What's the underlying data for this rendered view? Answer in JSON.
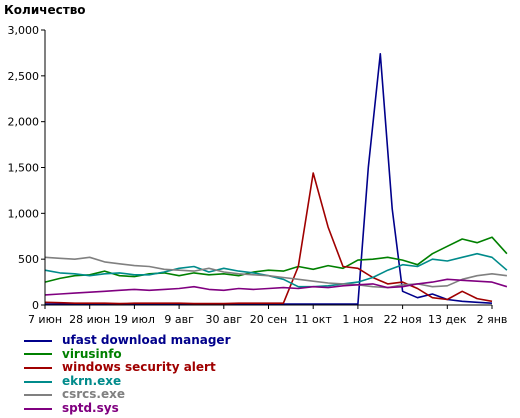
{
  "chart_data": {
    "type": "line",
    "title": "Количество",
    "xlabel": "",
    "ylabel": "",
    "ylim": [
      0,
      3000
    ],
    "yticks": [
      0,
      500,
      1000,
      1500,
      2000,
      2500,
      3000
    ],
    "ytick_labels": [
      "0",
      "500",
      "1,000",
      "1,500",
      "2,000",
      "2,500",
      "3,000"
    ],
    "xlim": [
      0,
      30
    ],
    "xtick_positions": [
      0,
      3,
      6,
      9,
      12,
      15,
      18,
      21,
      24,
      27,
      30
    ],
    "xtick_labels": [
      "7 июн",
      "28 июн",
      "19 июл",
      "9 авг",
      "30 авг",
      "20 сен",
      "11 окт",
      "1 ноя",
      "22 ноя",
      "13 дек",
      "2 янв"
    ],
    "grid": false,
    "legend_position": "bottom-left",
    "series": [
      {
        "name": "ufast download manager",
        "color": "#00008b",
        "points": [
          [
            0,
            10
          ],
          [
            1,
            10
          ],
          [
            2,
            10
          ],
          [
            3,
            10
          ],
          [
            4,
            10
          ],
          [
            5,
            10
          ],
          [
            6,
            10
          ],
          [
            7,
            10
          ],
          [
            8,
            10
          ],
          [
            9,
            10
          ],
          [
            10,
            10
          ],
          [
            11,
            10
          ],
          [
            12,
            10
          ],
          [
            13,
            10
          ],
          [
            14,
            10
          ],
          [
            15,
            10
          ],
          [
            16,
            10
          ],
          [
            17,
            10
          ],
          [
            18,
            10
          ],
          [
            19,
            10
          ],
          [
            20,
            10
          ],
          [
            21,
            10
          ],
          [
            21.7,
            1500
          ],
          [
            22.5,
            2740
          ],
          [
            23.3,
            1050
          ],
          [
            24,
            150
          ],
          [
            25,
            80
          ],
          [
            26,
            120
          ],
          [
            27,
            60
          ],
          [
            28,
            40
          ],
          [
            29,
            30
          ],
          [
            30,
            20
          ]
        ]
      },
      {
        "name": "virusinfo",
        "color": "#008000",
        "points": [
          [
            0,
            250
          ],
          [
            1,
            290
          ],
          [
            2,
            320
          ],
          [
            3,
            330
          ],
          [
            4,
            370
          ],
          [
            5,
            320
          ],
          [
            6,
            310
          ],
          [
            7,
            340
          ],
          [
            8,
            350
          ],
          [
            9,
            320
          ],
          [
            10,
            350
          ],
          [
            11,
            330
          ],
          [
            12,
            340
          ],
          [
            13,
            320
          ],
          [
            14,
            360
          ],
          [
            15,
            380
          ],
          [
            16,
            370
          ],
          [
            17,
            420
          ],
          [
            18,
            390
          ],
          [
            19,
            430
          ],
          [
            20,
            400
          ],
          [
            21,
            490
          ],
          [
            22,
            500
          ],
          [
            23,
            520
          ],
          [
            24,
            490
          ],
          [
            25,
            440
          ],
          [
            26,
            560
          ],
          [
            27,
            640
          ],
          [
            28,
            720
          ],
          [
            29,
            680
          ],
          [
            30,
            740
          ],
          [
            31,
            560
          ]
        ]
      },
      {
        "name": "windows security alert",
        "color": "#a00000",
        "points": [
          [
            0,
            30
          ],
          [
            1,
            25
          ],
          [
            2,
            20
          ],
          [
            3,
            20
          ],
          [
            4,
            20
          ],
          [
            5,
            15
          ],
          [
            6,
            20
          ],
          [
            7,
            20
          ],
          [
            8,
            20
          ],
          [
            9,
            20
          ],
          [
            10,
            15
          ],
          [
            11,
            15
          ],
          [
            12,
            15
          ],
          [
            13,
            20
          ],
          [
            14,
            20
          ],
          [
            15,
            20
          ],
          [
            16,
            20
          ],
          [
            17,
            420
          ],
          [
            18,
            1440
          ],
          [
            19,
            850
          ],
          [
            20,
            420
          ],
          [
            21,
            400
          ],
          [
            22,
            300
          ],
          [
            23,
            230
          ],
          [
            24,
            250
          ],
          [
            25,
            180
          ],
          [
            26,
            80
          ],
          [
            27,
            60
          ],
          [
            28,
            150
          ],
          [
            29,
            70
          ],
          [
            30,
            40
          ]
        ]
      },
      {
        "name": "ekrn.exe",
        "color": "#008b8b",
        "points": [
          [
            0,
            380
          ],
          [
            1,
            350
          ],
          [
            2,
            340
          ],
          [
            3,
            320
          ],
          [
            4,
            340
          ],
          [
            5,
            350
          ],
          [
            6,
            330
          ],
          [
            7,
            330
          ],
          [
            8,
            360
          ],
          [
            9,
            400
          ],
          [
            10,
            420
          ],
          [
            11,
            360
          ],
          [
            12,
            400
          ],
          [
            13,
            370
          ],
          [
            14,
            350
          ],
          [
            15,
            320
          ],
          [
            16,
            280
          ],
          [
            17,
            200
          ],
          [
            18,
            200
          ],
          [
            19,
            210
          ],
          [
            20,
            230
          ],
          [
            21,
            250
          ],
          [
            22,
            300
          ],
          [
            23,
            380
          ],
          [
            24,
            440
          ],
          [
            25,
            420
          ],
          [
            26,
            500
          ],
          [
            27,
            480
          ],
          [
            28,
            520
          ],
          [
            29,
            560
          ],
          [
            30,
            520
          ],
          [
            31,
            380
          ]
        ]
      },
      {
        "name": "csrcs.exe",
        "color": "#808080",
        "points": [
          [
            0,
            520
          ],
          [
            1,
            510
          ],
          [
            2,
            500
          ],
          [
            3,
            520
          ],
          [
            4,
            470
          ],
          [
            5,
            450
          ],
          [
            6,
            430
          ],
          [
            7,
            420
          ],
          [
            8,
            390
          ],
          [
            9,
            380
          ],
          [
            10,
            370
          ],
          [
            11,
            400
          ],
          [
            12,
            360
          ],
          [
            13,
            340
          ],
          [
            14,
            330
          ],
          [
            15,
            320
          ],
          [
            16,
            300
          ],
          [
            17,
            280
          ],
          [
            18,
            260
          ],
          [
            19,
            240
          ],
          [
            20,
            230
          ],
          [
            21,
            220
          ],
          [
            22,
            200
          ],
          [
            23,
            190
          ],
          [
            24,
            220
          ],
          [
            25,
            230
          ],
          [
            26,
            200
          ],
          [
            27,
            210
          ],
          [
            28,
            280
          ],
          [
            29,
            320
          ],
          [
            30,
            340
          ],
          [
            31,
            320
          ]
        ]
      },
      {
        "name": "sptd.sys",
        "color": "#800080",
        "points": [
          [
            0,
            110
          ],
          [
            1,
            120
          ],
          [
            2,
            130
          ],
          [
            3,
            140
          ],
          [
            4,
            150
          ],
          [
            5,
            160
          ],
          [
            6,
            170
          ],
          [
            7,
            160
          ],
          [
            8,
            170
          ],
          [
            9,
            180
          ],
          [
            10,
            200
          ],
          [
            11,
            170
          ],
          [
            12,
            160
          ],
          [
            13,
            180
          ],
          [
            14,
            170
          ],
          [
            15,
            180
          ],
          [
            16,
            190
          ],
          [
            17,
            180
          ],
          [
            18,
            200
          ],
          [
            19,
            190
          ],
          [
            20,
            210
          ],
          [
            21,
            220
          ],
          [
            22,
            230
          ],
          [
            23,
            190
          ],
          [
            24,
            200
          ],
          [
            25,
            230
          ],
          [
            26,
            250
          ],
          [
            27,
            280
          ],
          [
            28,
            270
          ],
          [
            29,
            260
          ],
          [
            30,
            250
          ],
          [
            31,
            200
          ]
        ]
      }
    ]
  }
}
